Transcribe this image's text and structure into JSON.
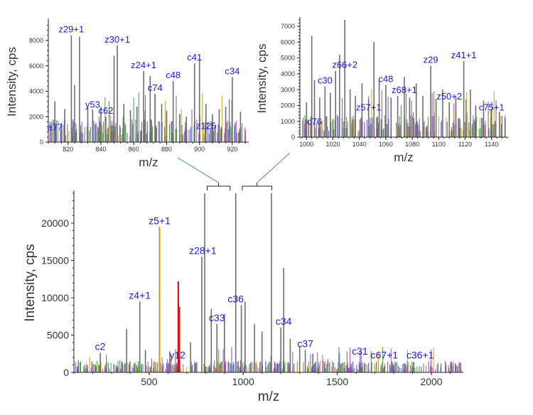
{
  "colors": {
    "spectrum": "#6e6e6e",
    "annotation": "#1a1ad6",
    "axis": "#222222",
    "highlight_orange": "#d4a017",
    "highlight_red": "#e01010",
    "pointer": "#4a7fc1"
  },
  "chart_data": [
    {
      "id": "main",
      "type": "line",
      "xlabel": "m/z",
      "ylabel": "Intensity, cps",
      "xlim": [
        100,
        2170
      ],
      "ylim": [
        0,
        24000
      ],
      "x_ticks": [
        500,
        1000,
        1500,
        2000
      ],
      "y_ticks": [
        0,
        5000,
        10000,
        15000,
        20000
      ],
      "grid": false,
      "peaks": [
        {
          "x": 240,
          "y": 2600
        },
        {
          "x": 380,
          "y": 5800
        },
        {
          "x": 450,
          "y": 9500
        },
        {
          "x": 480,
          "y": 3000
        },
        {
          "x": 555,
          "y": 19500,
          "color": "highlight_orange"
        },
        {
          "x": 610,
          "y": 2800
        },
        {
          "x": 655,
          "y": 12200,
          "color": "highlight_red"
        },
        {
          "x": 660,
          "y": 8800,
          "color": "highlight_red"
        },
        {
          "x": 720,
          "y": 4000
        },
        {
          "x": 780,
          "y": 15500
        },
        {
          "x": 795,
          "y": 24000
        },
        {
          "x": 830,
          "y": 8500
        },
        {
          "x": 860,
          "y": 6500
        },
        {
          "x": 900,
          "y": 7800
        },
        {
          "x": 960,
          "y": 24000
        },
        {
          "x": 990,
          "y": 9000
        },
        {
          "x": 1010,
          "y": 9500
        },
        {
          "x": 1060,
          "y": 6500
        },
        {
          "x": 1100,
          "y": 5500
        },
        {
          "x": 1150,
          "y": 24000
        },
        {
          "x": 1200,
          "y": 6000
        },
        {
          "x": 1215,
          "y": 14000
        },
        {
          "x": 1250,
          "y": 4500
        },
        {
          "x": 1300,
          "y": 3500
        },
        {
          "x": 1330,
          "y": 3000
        },
        {
          "x": 1370,
          "y": 2500
        },
        {
          "x": 1450,
          "y": 1500
        },
        {
          "x": 1520,
          "y": 1200
        },
        {
          "x": 1620,
          "y": 1000
        },
        {
          "x": 1750,
          "y": 800
        },
        {
          "x": 1900,
          "y": 700
        },
        {
          "x": 2050,
          "y": 600
        }
      ],
      "annotations": [
        {
          "text": "c2",
          "x": 240,
          "y": 2600
        },
        {
          "text": "z4+1",
          "x": 450,
          "y": 9500
        },
        {
          "text": "z5+1",
          "x": 555,
          "y": 19500
        },
        {
          "text": "y12",
          "x": 650,
          "y": 1500
        },
        {
          "text": "z28+1",
          "x": 785,
          "y": 15500
        },
        {
          "text": "c33",
          "x": 860,
          "y": 6500
        },
        {
          "text": "c36",
          "x": 960,
          "y": 9000
        },
        {
          "text": "c34",
          "x": 1215,
          "y": 6000
        },
        {
          "text": "c37",
          "x": 1330,
          "y": 3000
        },
        {
          "text": "c31",
          "x": 1620,
          "y": 2000
        },
        {
          "text": "c67+1",
          "x": 1750,
          "y": 1500
        },
        {
          "text": "c36+1",
          "x": 1940,
          "y": 1500
        }
      ]
    },
    {
      "id": "inset_left",
      "type": "line",
      "xlabel": "m/z",
      "ylabel": "Intensity, cps",
      "xlim": [
        808,
        930
      ],
      "ylim": [
        0,
        9500
      ],
      "x_ticks": [
        820,
        840,
        860,
        880,
        900,
        920
      ],
      "y_ticks": [
        0,
        2000,
        4000,
        6000,
        8000
      ],
      "grid": false,
      "peaks": [
        {
          "x": 812,
          "y": 3200
        },
        {
          "x": 818,
          "y": 2600
        },
        {
          "x": 822,
          "y": 8400
        },
        {
          "x": 824,
          "y": 4500
        },
        {
          "x": 827,
          "y": 8300
        },
        {
          "x": 832,
          "y": 2800
        },
        {
          "x": 835,
          "y": 2500
        },
        {
          "x": 840,
          "y": 2800
        },
        {
          "x": 843,
          "y": 2000
        },
        {
          "x": 848,
          "y": 6800
        },
        {
          "x": 850,
          "y": 7600
        },
        {
          "x": 854,
          "y": 3000
        },
        {
          "x": 858,
          "y": 2500
        },
        {
          "x": 862,
          "y": 2800
        },
        {
          "x": 866,
          "y": 5600
        },
        {
          "x": 870,
          "y": 5200
        },
        {
          "x": 873,
          "y": 3800
        },
        {
          "x": 877,
          "y": 3000
        },
        {
          "x": 880,
          "y": 2400
        },
        {
          "x": 884,
          "y": 4800
        },
        {
          "x": 888,
          "y": 2200
        },
        {
          "x": 892,
          "y": 2000
        },
        {
          "x": 897,
          "y": 6200
        },
        {
          "x": 900,
          "y": 6500
        },
        {
          "x": 904,
          "y": 3000
        },
        {
          "x": 908,
          "y": 2200
        },
        {
          "x": 912,
          "y": 2600
        },
        {
          "x": 916,
          "y": 2800
        },
        {
          "x": 920,
          "y": 5100
        },
        {
          "x": 925,
          "y": 2400
        }
      ],
      "annotations": [
        {
          "text": "z29+1",
          "x": 822,
          "y": 8400
        },
        {
          "text": "z30+1",
          "x": 850,
          "y": 7600
        },
        {
          "text": "z24+1",
          "x": 866,
          "y": 5600
        },
        {
          "text": "c41",
          "x": 897,
          "y": 6200
        },
        {
          "text": "c48",
          "x": 884,
          "y": 4800
        },
        {
          "text": "c74",
          "x": 873,
          "y": 3800
        },
        {
          "text": "c34",
          "x": 920,
          "y": 5100
        },
        {
          "text": "y53",
          "x": 835,
          "y": 2500
        },
        {
          "text": "c62",
          "x": 843,
          "y": 2000
        },
        {
          "text": "a77",
          "x": 812,
          "y": 700
        },
        {
          "text": "z125",
          "x": 904,
          "y": 800
        }
      ]
    },
    {
      "id": "inset_right",
      "type": "line",
      "xlabel": "m/z",
      "ylabel": "Intensity, cps",
      "xlim": [
        995,
        1152
      ],
      "ylim": [
        0,
        7400
      ],
      "x_ticks": [
        1000,
        1020,
        1040,
        1060,
        1080,
        1100,
        1120,
        1140
      ],
      "y_ticks": [
        0,
        1000,
        2000,
        3000,
        4000,
        5000,
        6000,
        7000
      ],
      "grid": false,
      "peaks": [
        {
          "x": 1000,
          "y": 2200
        },
        {
          "x": 1004,
          "y": 6400
        },
        {
          "x": 1006,
          "y": 3600
        },
        {
          "x": 1010,
          "y": 2500
        },
        {
          "x": 1014,
          "y": 3200
        },
        {
          "x": 1018,
          "y": 2800
        },
        {
          "x": 1022,
          "y": 4200
        },
        {
          "x": 1025,
          "y": 5200
        },
        {
          "x": 1029,
          "y": 7400
        },
        {
          "x": 1033,
          "y": 3000
        },
        {
          "x": 1037,
          "y": 2600
        },
        {
          "x": 1042,
          "y": 3400
        },
        {
          "x": 1047,
          "y": 2400
        },
        {
          "x": 1051,
          "y": 6000
        },
        {
          "x": 1055,
          "y": 3600
        },
        {
          "x": 1060,
          "y": 3300
        },
        {
          "x": 1064,
          "y": 2500
        },
        {
          "x": 1069,
          "y": 2600
        },
        {
          "x": 1074,
          "y": 3800
        },
        {
          "x": 1078,
          "y": 2500
        },
        {
          "x": 1083,
          "y": 3400
        },
        {
          "x": 1088,
          "y": 2600
        },
        {
          "x": 1094,
          "y": 4500
        },
        {
          "x": 1098,
          "y": 2400
        },
        {
          "x": 1103,
          "y": 3000
        },
        {
          "x": 1108,
          "y": 2200
        },
        {
          "x": 1113,
          "y": 2500
        },
        {
          "x": 1119,
          "y": 4800
        },
        {
          "x": 1124,
          "y": 3000
        },
        {
          "x": 1128,
          "y": 2000
        },
        {
          "x": 1134,
          "y": 2300
        },
        {
          "x": 1140,
          "y": 1800
        },
        {
          "x": 1146,
          "y": 1600
        }
      ],
      "annotations": [
        {
          "text": "z66+2",
          "x": 1029,
          "y": 4200
        },
        {
          "text": "c48",
          "x": 1060,
          "y": 3300
        },
        {
          "text": "z29",
          "x": 1094,
          "y": 4500
        },
        {
          "text": "z41+1",
          "x": 1119,
          "y": 4800
        },
        {
          "text": "c30",
          "x": 1014,
          "y": 3200
        },
        {
          "text": "z68+1",
          "x": 1074,
          "y": 2600
        },
        {
          "text": "z57+1",
          "x": 1047,
          "y": 1500
        },
        {
          "text": "z50+2",
          "x": 1108,
          "y": 2200
        },
        {
          "text": "c75+1",
          "x": 1140,
          "y": 1500
        },
        {
          "text": "c76",
          "x": 1006,
          "y": 600
        }
      ]
    }
  ]
}
